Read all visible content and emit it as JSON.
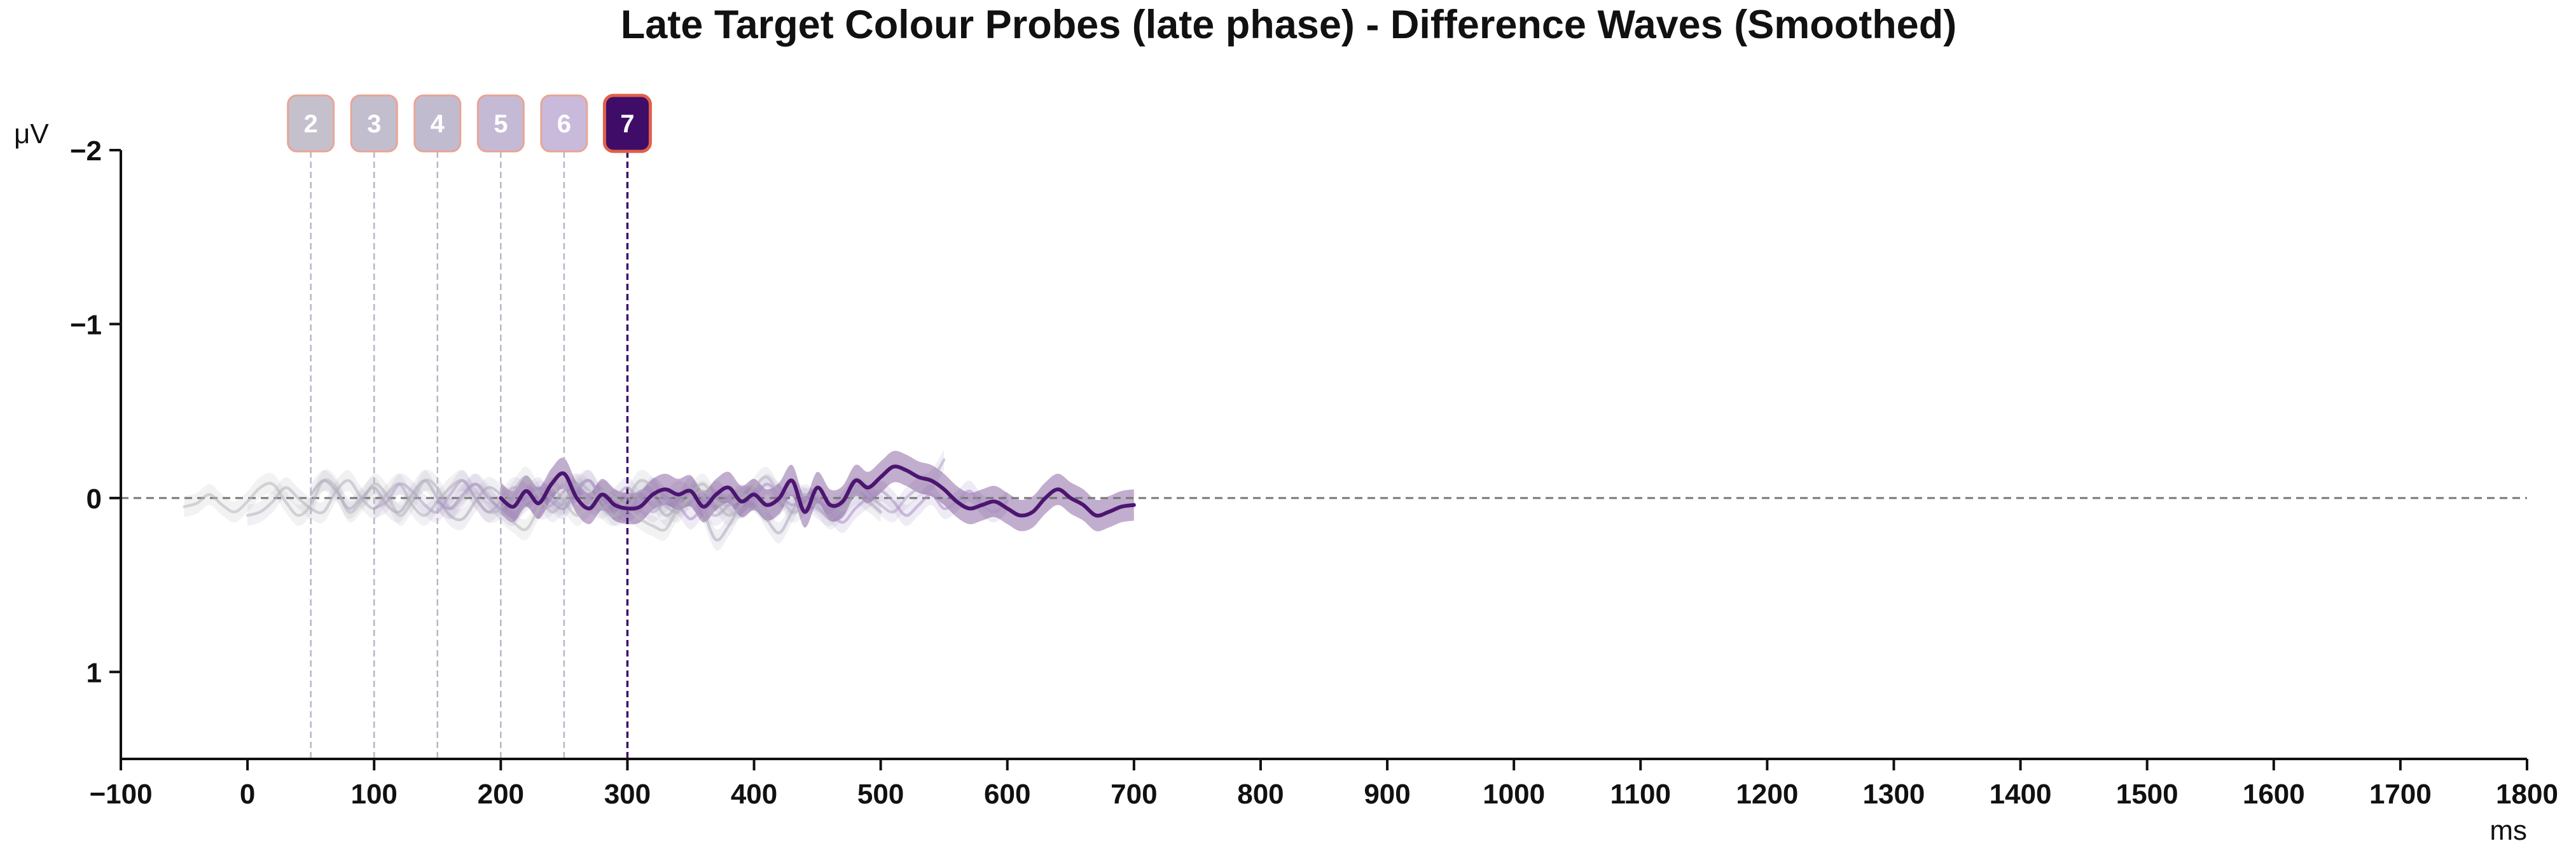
{
  "chart_data": {
    "type": "line",
    "title": "Late Target Colour Probes (late phase) - Difference Waves (Smoothed)",
    "xunit": "ms",
    "yunit": "μV",
    "xlim": [
      -100,
      1800
    ],
    "ylim": [
      -2,
      1.5
    ],
    "y_inverted": true,
    "x_ticks": [
      -100,
      0,
      100,
      200,
      300,
      400,
      500,
      600,
      700,
      800,
      900,
      1000,
      1100,
      1200,
      1300,
      1400,
      1500,
      1600,
      1700,
      1800
    ],
    "x_tick_labels": [
      "−100",
      "0",
      "100",
      "200",
      "300",
      "400",
      "500",
      "600",
      "700",
      "800",
      "900",
      "1000",
      "1100",
      "1200",
      "1300",
      "1400",
      "1500",
      "1600",
      "1700",
      "1800"
    ],
    "y_ticks": [
      -2,
      -1,
      0,
      1
    ],
    "y_tick_labels": [
      "−2",
      "−1",
      "0",
      "1"
    ],
    "zero_line": true,
    "grid": false,
    "markers": [
      {
        "label": "2",
        "x": 50,
        "color": "#c4c1cd",
        "active": false
      },
      {
        "label": "3",
        "x": 100,
        "color": "#c2bece",
        "active": false
      },
      {
        "label": "4",
        "x": 150,
        "color": "#c1bbd0",
        "active": false
      },
      {
        "label": "5",
        "x": 200,
        "color": "#c4bad6",
        "active": false
      },
      {
        "label": "6",
        "x": 250,
        "color": "#c9badb",
        "active": false
      },
      {
        "label": "7",
        "x": 300,
        "color": "#3f0d68",
        "active": true
      }
    ],
    "series": [
      {
        "x": [
          -50,
          -40,
          -30,
          -20,
          -10,
          0,
          10,
          20,
          30,
          40,
          50,
          60,
          70,
          80,
          90,
          100,
          110,
          120,
          130,
          140,
          150,
          160,
          170,
          180,
          190,
          200,
          210,
          220,
          230,
          240,
          250,
          260,
          270,
          280,
          290,
          300,
          310,
          320,
          330,
          340,
          350,
          360,
          370,
          380,
          390,
          400
        ],
        "y": [
          0.05,
          0.03,
          -0.02,
          0.04,
          0.08,
          0.02,
          -0.06,
          -0.08,
          0.02,
          0.1,
          0.04,
          -0.1,
          -0.06,
          0.08,
          0.02,
          -0.08,
          -0.02,
          0.1,
          0.02,
          -0.1,
          -0.06,
          0.06,
          0.0,
          -0.08,
          -0.02,
          0.08,
          0.14,
          0.18,
          0.06,
          -0.06,
          0.02,
          0.1,
          0.04,
          -0.04,
          0.0,
          0.06,
          0.12,
          0.16,
          0.18,
          0.06,
          0.0,
          -0.04,
          0.02,
          0.04,
          0.0,
          -0.02
        ],
        "color": "#b8b6bd",
        "opacity": 0.55
      },
      {
        "x": [
          0,
          10,
          20,
          30,
          40,
          50,
          60,
          70,
          80,
          90,
          100,
          110,
          120,
          130,
          140,
          150,
          160,
          170,
          180,
          190,
          200,
          210,
          220,
          230,
          240,
          250,
          260,
          270,
          280,
          290,
          300,
          310,
          320,
          330,
          340,
          350,
          360,
          370,
          380,
          390,
          400,
          410,
          420,
          430,
          440,
          450
        ],
        "y": [
          0.1,
          0.08,
          0.02,
          -0.06,
          0.0,
          0.06,
          0.08,
          -0.04,
          -0.1,
          0.0,
          0.06,
          -0.02,
          -0.08,
          0.04,
          0.1,
          0.02,
          -0.06,
          -0.1,
          0.0,
          0.08,
          0.06,
          -0.04,
          -0.12,
          -0.02,
          0.08,
          0.02,
          -0.08,
          -0.04,
          0.06,
          0.1,
          0.0,
          -0.1,
          -0.06,
          0.04,
          0.08,
          -0.02,
          -0.08,
          0.02,
          0.1,
          0.04,
          -0.06,
          -0.12,
          -0.02,
          0.08,
          0.04,
          -0.02
        ],
        "color": "#b4b1bc",
        "opacity": 0.55
      },
      {
        "x": [
          50,
          60,
          70,
          80,
          90,
          100,
          110,
          120,
          130,
          140,
          150,
          160,
          170,
          180,
          190,
          200,
          210,
          220,
          230,
          240,
          250,
          260,
          270,
          280,
          290,
          300,
          310,
          320,
          330,
          340,
          350,
          360,
          370,
          380,
          390,
          400,
          410,
          420,
          430,
          440,
          450,
          460,
          470,
          480,
          490,
          500
        ],
        "y": [
          -0.02,
          -0.1,
          -0.04,
          0.06,
          0.0,
          -0.06,
          0.04,
          0.08,
          -0.02,
          -0.1,
          0.0,
          0.1,
          0.12,
          0.02,
          -0.06,
          -0.02,
          0.06,
          0.02,
          -0.04,
          0.0,
          0.04,
          -0.06,
          -0.1,
          0.02,
          0.1,
          0.06,
          -0.04,
          0.0,
          0.1,
          0.04,
          -0.06,
          0.08,
          0.24,
          0.16,
          0.04,
          0.0,
          0.12,
          0.2,
          0.08,
          -0.02,
          0.04,
          0.12,
          0.06,
          -0.02,
          0.02,
          0.08
        ],
        "color": "#ada8bb",
        "opacity": 0.55
      },
      {
        "x": [
          100,
          110,
          120,
          130,
          140,
          150,
          160,
          170,
          180,
          190,
          200,
          210,
          220,
          230,
          240,
          250,
          260,
          270,
          280,
          290,
          300,
          310,
          320,
          330,
          340,
          350,
          360,
          370,
          380,
          390,
          400,
          410,
          420,
          430,
          440,
          450,
          460,
          470,
          480,
          490,
          500,
          510,
          520,
          530,
          540,
          550
        ],
        "y": [
          0.06,
          0.02,
          -0.08,
          -0.04,
          0.04,
          0.08,
          -0.02,
          -0.1,
          0.0,
          0.08,
          0.02,
          -0.06,
          -0.02,
          0.06,
          0.04,
          -0.04,
          -0.08,
          0.02,
          0.06,
          0.0,
          -0.06,
          0.02,
          0.08,
          0.02,
          -0.04,
          0.0,
          0.06,
          0.1,
          0.04,
          -0.02,
          0.02,
          0.08,
          0.04,
          -0.04,
          0.0,
          0.06,
          0.1,
          0.02,
          -0.06,
          -0.02,
          0.04,
          0.08,
          0.0,
          -0.06,
          -0.1,
          -0.22
        ],
        "color": "#b1a3c6",
        "opacity": 0.55
      },
      {
        "x": [
          150,
          160,
          170,
          180,
          190,
          200,
          210,
          220,
          230,
          240,
          250,
          260,
          270,
          280,
          290,
          300,
          310,
          320,
          330,
          340,
          350,
          360,
          370,
          380,
          390,
          400,
          410,
          420,
          430,
          440,
          450,
          460,
          470,
          480,
          490,
          500,
          510,
          520,
          530,
          540,
          550,
          560,
          570,
          580,
          590,
          600
        ],
        "y": [
          0.02,
          0.06,
          -0.02,
          -0.08,
          0.0,
          0.06,
          0.1,
          0.0,
          -0.06,
          0.02,
          0.06,
          -0.04,
          -0.1,
          0.0,
          0.04,
          0.08,
          0.02,
          -0.06,
          0.0,
          0.04,
          0.12,
          0.04,
          -0.04,
          0.02,
          0.06,
          0.0,
          -0.08,
          -0.02,
          0.04,
          0.0,
          0.02,
          0.08,
          0.14,
          0.06,
          0.0,
          -0.04,
          0.02,
          0.1,
          0.04,
          -0.02,
          0.06,
          0.02,
          -0.04,
          0.04,
          0.08,
          0.02
        ],
        "color": "#a98fc6",
        "opacity": 0.55
      },
      {
        "x": [
          200,
          210,
          220,
          230,
          240,
          250,
          260,
          270,
          280,
          290,
          300,
          310,
          320,
          330,
          340,
          350,
          360,
          370,
          380,
          390,
          400,
          410,
          420,
          430,
          440,
          450,
          460,
          470,
          480,
          490,
          500,
          510,
          520,
          530,
          540,
          550,
          560,
          570,
          580,
          590,
          600,
          610,
          620,
          630,
          640,
          650,
          660,
          670,
          680,
          690,
          700
        ],
        "y": [
          0.0,
          0.05,
          -0.04,
          0.03,
          -0.08,
          -0.14,
          0.0,
          0.06,
          -0.02,
          0.04,
          0.06,
          0.05,
          -0.02,
          -0.05,
          -0.02,
          -0.04,
          0.05,
          -0.02,
          -0.06,
          0.02,
          -0.02,
          0.04,
          0.0,
          -0.1,
          0.08,
          -0.06,
          0.04,
          0.02,
          -0.1,
          -0.06,
          -0.12,
          -0.18,
          -0.16,
          -0.12,
          -0.1,
          -0.05,
          0.02,
          0.06,
          0.04,
          0.02,
          0.06,
          0.1,
          0.08,
          0.0,
          -0.05,
          0.0,
          0.04,
          0.1,
          0.08,
          0.05,
          0.04
        ],
        "color": "#4c1570",
        "opacity": 1.0,
        "band_halfwidth": 0.09
      }
    ]
  }
}
